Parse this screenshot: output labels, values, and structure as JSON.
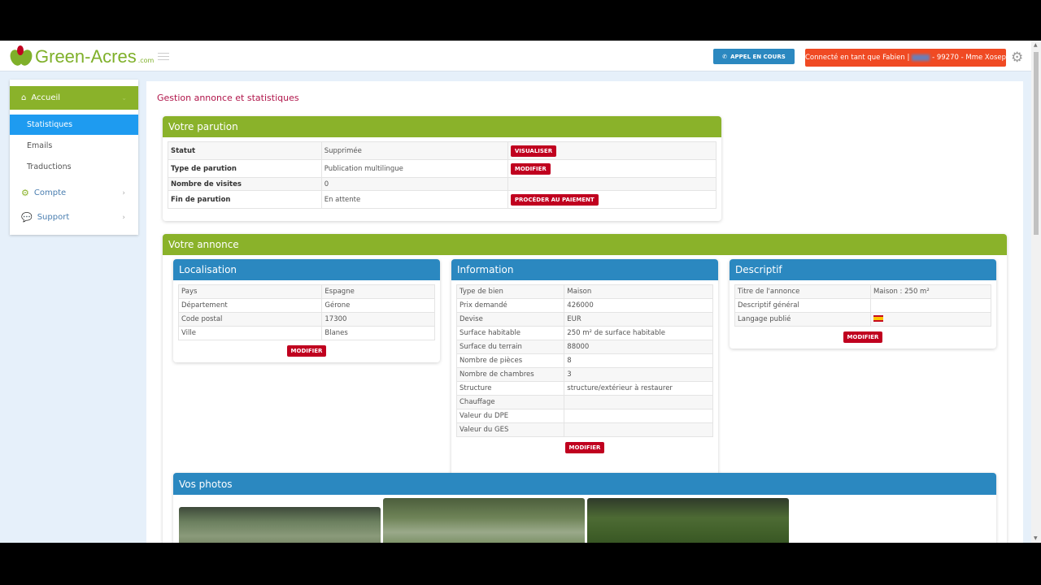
{
  "header": {
    "brand": "Green-Acres",
    "brand_suffix": ".com",
    "call_label": "APPEL EN COURS",
    "connected_prefix": "Connecté en tant que Fabien |",
    "connected_suffix": "- 99270 - Mme Xosep"
  },
  "sidebar": {
    "accueil": "Accueil",
    "sub": [
      "Statistiques",
      "Emails",
      "Traductions"
    ],
    "compte": "Compte",
    "support": "Support"
  },
  "page_title": "Gestion annonce et statistiques",
  "parution": {
    "title": "Votre parution",
    "rows": [
      {
        "label": "Statut",
        "value": "Supprimée",
        "action": "VISUALISER"
      },
      {
        "label": "Type de parution",
        "value": "Publication multilingue",
        "action": "MODIFIER"
      },
      {
        "label": "Nombre de visites",
        "value": "0",
        "action": ""
      },
      {
        "label": "Fin de parution",
        "value": "En attente",
        "action": "PROCÉDER AU PAIEMENT"
      }
    ]
  },
  "annonce": {
    "title": "Votre annonce",
    "localisation": {
      "title": "Localisation",
      "rows": [
        [
          "Pays",
          "Espagne"
        ],
        [
          "Département",
          "Gérone"
        ],
        [
          "Code postal",
          "17300"
        ],
        [
          "Ville",
          "Blanes"
        ]
      ],
      "button": "MODIFIER"
    },
    "information": {
      "title": "Information",
      "rows": [
        [
          "Type de bien",
          "Maison"
        ],
        [
          "Prix demandé",
          "426000"
        ],
        [
          "Devise",
          "EUR"
        ],
        [
          "Surface habitable",
          "250 m² de surface habitable"
        ],
        [
          "Surface du terrain",
          "88000"
        ],
        [
          "Nombre de pièces",
          "8"
        ],
        [
          "Nombre de chambres",
          "3"
        ],
        [
          "Structure",
          "structure/extérieur à restaurer"
        ],
        [
          "Chauffage",
          ""
        ],
        [
          "Valeur du DPE",
          ""
        ],
        [
          "Valeur du GES",
          ""
        ]
      ],
      "button": "MODIFIER"
    },
    "descriptif": {
      "title": "Descriptif",
      "rows": [
        [
          "Titre de l'annonce",
          "Maison : 250 m²"
        ],
        [
          "Descriptif général",
          ""
        ],
        [
          "Langage publié",
          ""
        ]
      ],
      "flag": "spain-flag-icon",
      "button": "MODIFIER"
    },
    "photos": {
      "title": "Vos photos"
    }
  },
  "colors": {
    "green": "#8ab22a",
    "blue": "#2b88c0",
    "red": "#c0001f",
    "orange": "#f04a23",
    "active": "#1e9bf0"
  }
}
